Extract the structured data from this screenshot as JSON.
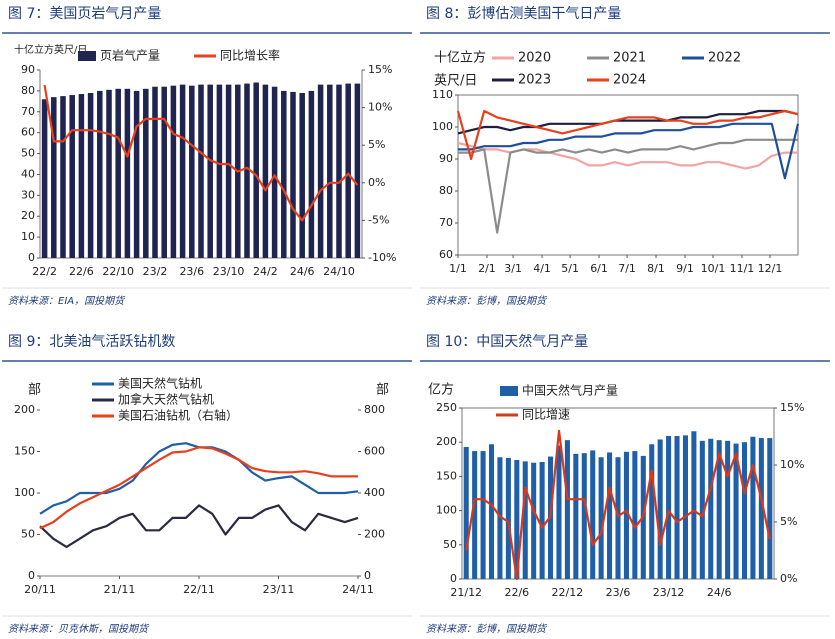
{
  "chart_data": [
    {
      "type": "combo",
      "title": "图 7：美国页岩气月产量",
      "source": "资料来源：EIA，国投期货",
      "y_label": "十亿立方英尺/日",
      "categories": [
        "22/2",
        null,
        null,
        null,
        "22/6",
        null,
        null,
        null,
        "22/10",
        null,
        null,
        null,
        "23/2",
        null,
        null,
        null,
        "23/6",
        null,
        null,
        null,
        "23/10",
        null,
        null,
        null,
        "24/2",
        null,
        null,
        null,
        "24/6",
        null,
        null,
        null,
        "24/10",
        null,
        null
      ],
      "series": [
        {
          "name": "页岩气产量",
          "type": "bar",
          "color": "#1f2550",
          "values": [
            76,
            77,
            77.5,
            78,
            78.5,
            79,
            80,
            80.5,
            81,
            81,
            80,
            81,
            82,
            82,
            82.5,
            83,
            82.5,
            83,
            83,
            83,
            83,
            83,
            83.5,
            84,
            83,
            82,
            80,
            79.5,
            79,
            80,
            83,
            83,
            83,
            83.5,
            83.5
          ]
        },
        {
          "name": "同比增长率",
          "type": "line",
          "axis": "y2",
          "color": "#e8401c",
          "values": [
            13,
            5.5,
            5.5,
            7,
            7,
            7,
            6.8,
            6.5,
            6,
            3.5,
            7.5,
            8.5,
            8.5,
            8.5,
            6.5,
            6,
            5,
            4,
            3,
            2.5,
            2.5,
            1.5,
            2,
            1,
            -1,
            1,
            -1,
            -3.5,
            -5,
            -3,
            -1,
            0,
            0,
            1.2,
            -0.3
          ]
        }
      ],
      "ylim": [
        0,
        90
      ],
      "yticks": [
        0,
        10,
        20,
        30,
        40,
        50,
        60,
        70,
        80,
        90
      ],
      "y2lim": [
        -10,
        15
      ],
      "y2ticks": [
        {
          "value": -10,
          "label": "-10%"
        },
        {
          "value": -5,
          "label": "-5%"
        },
        {
          "value": 0,
          "label": "0%"
        },
        {
          "value": 5,
          "label": "5%"
        },
        {
          "value": 10,
          "label": "10%"
        },
        {
          "value": 15,
          "label": "15%"
        }
      ]
    },
    {
      "type": "line",
      "title": "图 8：彭博估测美国干气日产量",
      "source": "资料来源：彭博，国投期货",
      "y_label": [
        "十亿立方",
        "英尺/日"
      ],
      "x": [
        1,
        15,
        29,
        43,
        57,
        71,
        85,
        99,
        113,
        127,
        141,
        155,
        169,
        183,
        197,
        211,
        225,
        239,
        253,
        267,
        281,
        295,
        309,
        323,
        337,
        351,
        365
      ],
      "xlim": [
        1,
        365
      ],
      "xticks": [
        {
          "value": 1,
          "label": "1/1"
        },
        {
          "value": 32,
          "label": "2/1"
        },
        {
          "value": 60,
          "label": "3/1"
        },
        {
          "value": 91,
          "label": "4/1"
        },
        {
          "value": 121,
          "label": "5/1"
        },
        {
          "value": 152,
          "label": "6/1"
        },
        {
          "value": 182,
          "label": "7/1"
        },
        {
          "value": 213,
          "label": "8/1"
        },
        {
          "value": 244,
          "label": "9/1"
        },
        {
          "value": 274,
          "label": "10/1"
        },
        {
          "value": 305,
          "label": "11/1"
        },
        {
          "value": 335,
          "label": "12/1"
        }
      ],
      "series": [
        {
          "name": "2020",
          "color": "#f4a3a3",
          "values": [
            95,
            94,
            93,
            93,
            92,
            93,
            93,
            92,
            91,
            90,
            88,
            88,
            89,
            88,
            89,
            89,
            89,
            88,
            88,
            89,
            89,
            88,
            87,
            88,
            91,
            92,
            92
          ]
        },
        {
          "name": "2021",
          "color": "#8c8c8c",
          "values": [
            92,
            92,
            93,
            67,
            92,
            93,
            92,
            92,
            93,
            92,
            93,
            92,
            93,
            92,
            93,
            93,
            93,
            94,
            93,
            94,
            95,
            95,
            96,
            96,
            96,
            96,
            96
          ]
        },
        {
          "name": "2022",
          "color": "#1f4e9c",
          "values": [
            93,
            93,
            94,
            94,
            94,
            95,
            95,
            96,
            96,
            97,
            97,
            97,
            98,
            98,
            98,
            99,
            99,
            99,
            100,
            100,
            100,
            101,
            101,
            101,
            101,
            84,
            101
          ]
        },
        {
          "name": "2023",
          "color": "#1c1f3f",
          "values": [
            98,
            99,
            100,
            100,
            99,
            100,
            100,
            101,
            101,
            101,
            101,
            101,
            102,
            102,
            102,
            102,
            102,
            103,
            103,
            103,
            104,
            104,
            104,
            105,
            105,
            105,
            104
          ]
        },
        {
          "name": "2024",
          "color": "#e8401c",
          "values": [
            105,
            90,
            105,
            103,
            102,
            101,
            100,
            99,
            98,
            99,
            100,
            101,
            102,
            103,
            103,
            103,
            102,
            102,
            101,
            101,
            102,
            102,
            103,
            103,
            104,
            105,
            104
          ]
        }
      ],
      "ylim": [
        60,
        110
      ],
      "yticks": [
        60,
        70,
        80,
        90,
        100,
        110
      ]
    },
    {
      "type": "line",
      "title": "图 9：北美油气活跃钻机数",
      "source": "资料来源：贝克休斯，国投期货",
      "y_label": "部",
      "y2_label": "部",
      "x": [
        0,
        2,
        4,
        6,
        8,
        10,
        12,
        14,
        16,
        18,
        20,
        22,
        24,
        26,
        28,
        30,
        32,
        34,
        36,
        38,
        40,
        42,
        44,
        46,
        48
      ],
      "xlim": [
        0,
        48
      ],
      "xticks": [
        {
          "value": 0,
          "label": "20/11"
        },
        {
          "value": 12,
          "label": "21/11"
        },
        {
          "value": 24,
          "label": "22/11"
        },
        {
          "value": 36,
          "label": "23/11"
        },
        {
          "value": 48,
          "label": "24/11"
        }
      ],
      "series": [
        {
          "name": "美国天然气钻机",
          "color": "#1f5fa8",
          "values": [
            75,
            85,
            90,
            100,
            100,
            100,
            105,
            115,
            135,
            150,
            158,
            160,
            155,
            155,
            150,
            140,
            125,
            115,
            118,
            120,
            110,
            100,
            100,
            100,
            102
          ]
        },
        {
          "name": "加拿大天然气钻机",
          "color": "#2a2a40",
          "values": [
            60,
            45,
            35,
            45,
            55,
            60,
            70,
            75,
            55,
            55,
            70,
            70,
            85,
            75,
            50,
            70,
            70,
            80,
            85,
            65,
            55,
            75,
            70,
            65,
            70
          ]
        },
        {
          "name": "美国石油钻机（右轴）",
          "axis": "y2",
          "color": "#e8401c",
          "values": [
            230,
            260,
            310,
            350,
            380,
            410,
            440,
            480,
            520,
            560,
            595,
            600,
            620,
            615,
            590,
            560,
            520,
            505,
            500,
            500,
            505,
            495,
            480,
            480,
            480
          ]
        }
      ],
      "ylim": [
        0,
        200
      ],
      "yticks": [
        0,
        50,
        100,
        150,
        200
      ],
      "y2lim": [
        0,
        800
      ],
      "y2ticks": [
        0,
        200,
        400,
        600,
        800
      ]
    },
    {
      "type": "combo",
      "title": "图 10：中国天然气月产量",
      "source": "资料来源：彭博，国投期货",
      "y_label": "亿方",
      "categories": [
        "21/12",
        null,
        null,
        null,
        null,
        null,
        "22/6",
        null,
        null,
        null,
        null,
        null,
        "22/12",
        null,
        null,
        null,
        null,
        null,
        "23/6",
        null,
        null,
        null,
        null,
        null,
        "23/12",
        null,
        null,
        null,
        null,
        null,
        "24/6",
        null,
        null,
        null,
        null,
        null,
        null
      ],
      "series": [
        {
          "name": "中国天然气月产量",
          "type": "bar",
          "color": "#1f5fa8",
          "values": [
            193,
            187,
            187,
            197,
            178,
            177,
            174,
            172,
            170,
            171,
            179,
            195,
            203,
            183,
            184,
            188,
            178,
            185,
            178,
            186,
            187,
            180,
            197,
            204,
            209,
            209,
            210,
            216,
            202,
            205,
            203,
            202,
            198,
            200,
            208,
            206,
            206
          ]
        },
        {
          "name": "同比增速",
          "type": "line",
          "axis": "y2",
          "color": "#d8391d",
          "values": [
            2.5,
            7,
            7,
            6.5,
            5.5,
            5,
            0,
            8,
            6,
            4.5,
            5.5,
            13,
            7,
            7,
            7,
            3,
            4,
            8,
            5.5,
            6,
            4.5,
            5.5,
            9.5,
            3,
            6,
            5,
            5.5,
            6,
            5.5,
            8,
            11,
            9,
            11,
            7.5,
            10,
            7,
            3.5
          ]
        }
      ],
      "ylim": [
        0,
        250
      ],
      "yticks": [
        0,
        50,
        100,
        150,
        200,
        250
      ],
      "y2lim": [
        0,
        15
      ],
      "y2ticks": [
        {
          "value": 0,
          "label": "0%"
        },
        {
          "value": 5,
          "label": "5%"
        },
        {
          "value": 10,
          "label": "10%"
        },
        {
          "value": 15,
          "label": "15%"
        }
      ]
    }
  ]
}
